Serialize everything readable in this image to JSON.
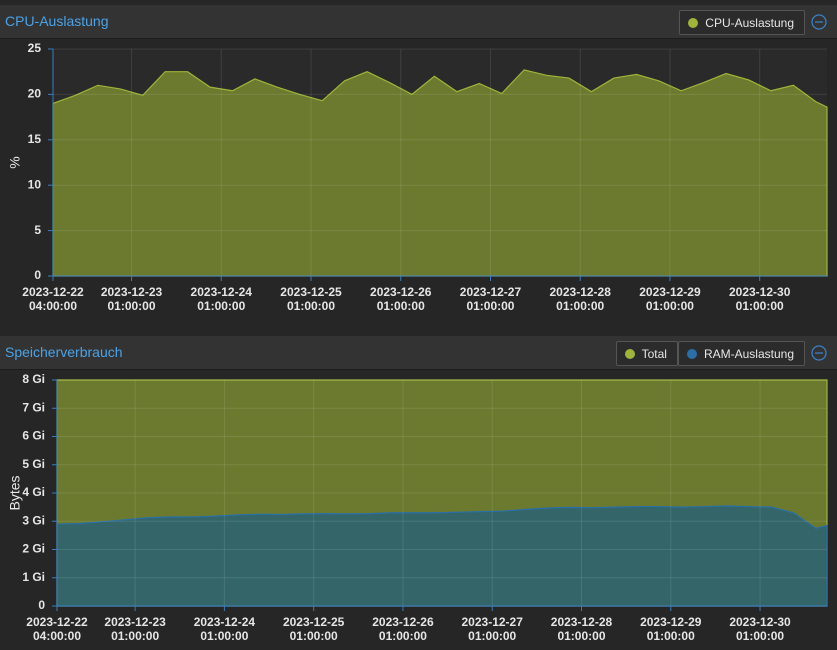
{
  "chart_data": [
    {
      "type": "area",
      "title": "CPU-Auslastung",
      "ylabel": "%",
      "x": [
        "2023-12-22 04:00:00",
        "2023-12-22 10:00:00",
        "2023-12-22 16:00:00",
        "2023-12-22 22:00:00",
        "2023-12-23 04:00:00",
        "2023-12-23 10:00:00",
        "2023-12-23 16:00:00",
        "2023-12-23 22:00:00",
        "2023-12-24 04:00:00",
        "2023-12-24 10:00:00",
        "2023-12-24 16:00:00",
        "2023-12-24 22:00:00",
        "2023-12-25 04:00:00",
        "2023-12-25 10:00:00",
        "2023-12-25 16:00:00",
        "2023-12-25 22:00:00",
        "2023-12-26 04:00:00",
        "2023-12-26 10:00:00",
        "2023-12-26 16:00:00",
        "2023-12-26 22:00:00",
        "2023-12-27 04:00:00",
        "2023-12-27 10:00:00",
        "2023-12-27 16:00:00",
        "2023-12-27 22:00:00",
        "2023-12-28 04:00:00",
        "2023-12-28 10:00:00",
        "2023-12-28 16:00:00",
        "2023-12-28 22:00:00",
        "2023-12-29 04:00:00",
        "2023-12-29 10:00:00",
        "2023-12-29 16:00:00",
        "2023-12-29 22:00:00",
        "2023-12-30 04:00:00",
        "2023-12-30 10:00:00",
        "2023-12-30 16:00:00",
        "2023-12-30 19:00:00"
      ],
      "series": [
        {
          "name": "CPU-Auslastung",
          "color": "#9fb43a",
          "fill": "#6b7a2e",
          "values": [
            19,
            19.9,
            21,
            20.6,
            19.9,
            22.5,
            22.5,
            20.8,
            20.4,
            21.7,
            20.8,
            20,
            19.3,
            21.5,
            22.5,
            21.3,
            20,
            22,
            20.3,
            21.2,
            20.1,
            22.7,
            22.1,
            21.8,
            20.3,
            21.8,
            22.2,
            21.5,
            20.4,
            21.3,
            22.3,
            21.6,
            20.4,
            21,
            19.2,
            18.6
          ]
        }
      ],
      "xlim": [
        "2023-12-22 04:00:00",
        "2023-12-30 19:00:00"
      ],
      "xticks": [
        "2023-12-22 04:00:00",
        "2023-12-23 01:00:00",
        "2023-12-24 01:00:00",
        "2023-12-25 01:00:00",
        "2023-12-26 01:00:00",
        "2023-12-27 01:00:00",
        "2023-12-28 01:00:00",
        "2023-12-29 01:00:00",
        "2023-12-30 01:00:00"
      ],
      "ylim": [
        0,
        25
      ],
      "yticks": [
        0,
        5,
        10,
        15,
        20,
        25
      ],
      "grid": true
    },
    {
      "type": "area",
      "title": "Speicherverbrauch",
      "ylabel": "Bytes",
      "x": [
        "2023-12-22 04:00:00",
        "2023-12-22 10:00:00",
        "2023-12-22 16:00:00",
        "2023-12-22 22:00:00",
        "2023-12-23 04:00:00",
        "2023-12-23 10:00:00",
        "2023-12-23 16:00:00",
        "2023-12-23 22:00:00",
        "2023-12-24 04:00:00",
        "2023-12-24 10:00:00",
        "2023-12-24 16:00:00",
        "2023-12-24 22:00:00",
        "2023-12-25 04:00:00",
        "2023-12-25 10:00:00",
        "2023-12-25 16:00:00",
        "2023-12-25 22:00:00",
        "2023-12-26 04:00:00",
        "2023-12-26 10:00:00",
        "2023-12-26 16:00:00",
        "2023-12-26 22:00:00",
        "2023-12-27 04:00:00",
        "2023-12-27 10:00:00",
        "2023-12-27 16:00:00",
        "2023-12-27 22:00:00",
        "2023-12-28 04:00:00",
        "2023-12-28 10:00:00",
        "2023-12-28 16:00:00",
        "2023-12-28 22:00:00",
        "2023-12-29 04:00:00",
        "2023-12-29 10:00:00",
        "2023-12-29 16:00:00",
        "2023-12-29 22:00:00",
        "2023-12-30 04:00:00",
        "2023-12-30 10:00:00",
        "2023-12-30 16:00:00",
        "2023-12-30 19:00:00"
      ],
      "series": [
        {
          "name": "Total",
          "color": "#9fb43a",
          "fill": "#6b7a2e",
          "values": [
            8,
            8,
            8,
            8,
            8,
            8,
            8,
            8,
            8,
            8,
            8,
            8,
            8,
            8,
            8,
            8,
            8,
            8,
            8,
            8,
            8,
            8,
            8,
            8,
            8,
            8,
            8,
            8,
            8,
            8,
            8,
            8,
            8,
            8,
            8,
            8
          ]
        },
        {
          "name": "RAM-Auslastung",
          "color": "#2a6fa8",
          "fill": "#2f6470",
          "values": [
            2.9,
            2.92,
            2.98,
            3.05,
            3.12,
            3.15,
            3.15,
            3.18,
            3.22,
            3.25,
            3.24,
            3.26,
            3.27,
            3.26,
            3.27,
            3.3,
            3.3,
            3.3,
            3.32,
            3.34,
            3.36,
            3.42,
            3.47,
            3.49,
            3.48,
            3.5,
            3.52,
            3.52,
            3.5,
            3.52,
            3.54,
            3.52,
            3.5,
            3.3,
            2.75,
            2.85
          ]
        }
      ],
      "xlim": [
        "2023-12-22 04:00:00",
        "2023-12-30 19:00:00"
      ],
      "xticks": [
        "2023-12-22 04:00:00",
        "2023-12-23 01:00:00",
        "2023-12-24 01:00:00",
        "2023-12-25 01:00:00",
        "2023-12-26 01:00:00",
        "2023-12-27 01:00:00",
        "2023-12-28 01:00:00",
        "2023-12-29 01:00:00",
        "2023-12-30 01:00:00"
      ],
      "ylim": [
        0,
        8
      ],
      "yticks": [
        0,
        {
          "value": 1,
          "label": "1 Gi"
        },
        {
          "value": 2,
          "label": "2 Gi"
        },
        {
          "value": 3,
          "label": "3 Gi"
        },
        {
          "value": 4,
          "label": "4 Gi"
        },
        {
          "value": 5,
          "label": "5 Gi"
        },
        {
          "value": 6,
          "label": "6 Gi"
        },
        {
          "value": 7,
          "label": "7 Gi"
        },
        {
          "value": 8,
          "label": "8 Gi"
        }
      ],
      "grid": true
    }
  ]
}
